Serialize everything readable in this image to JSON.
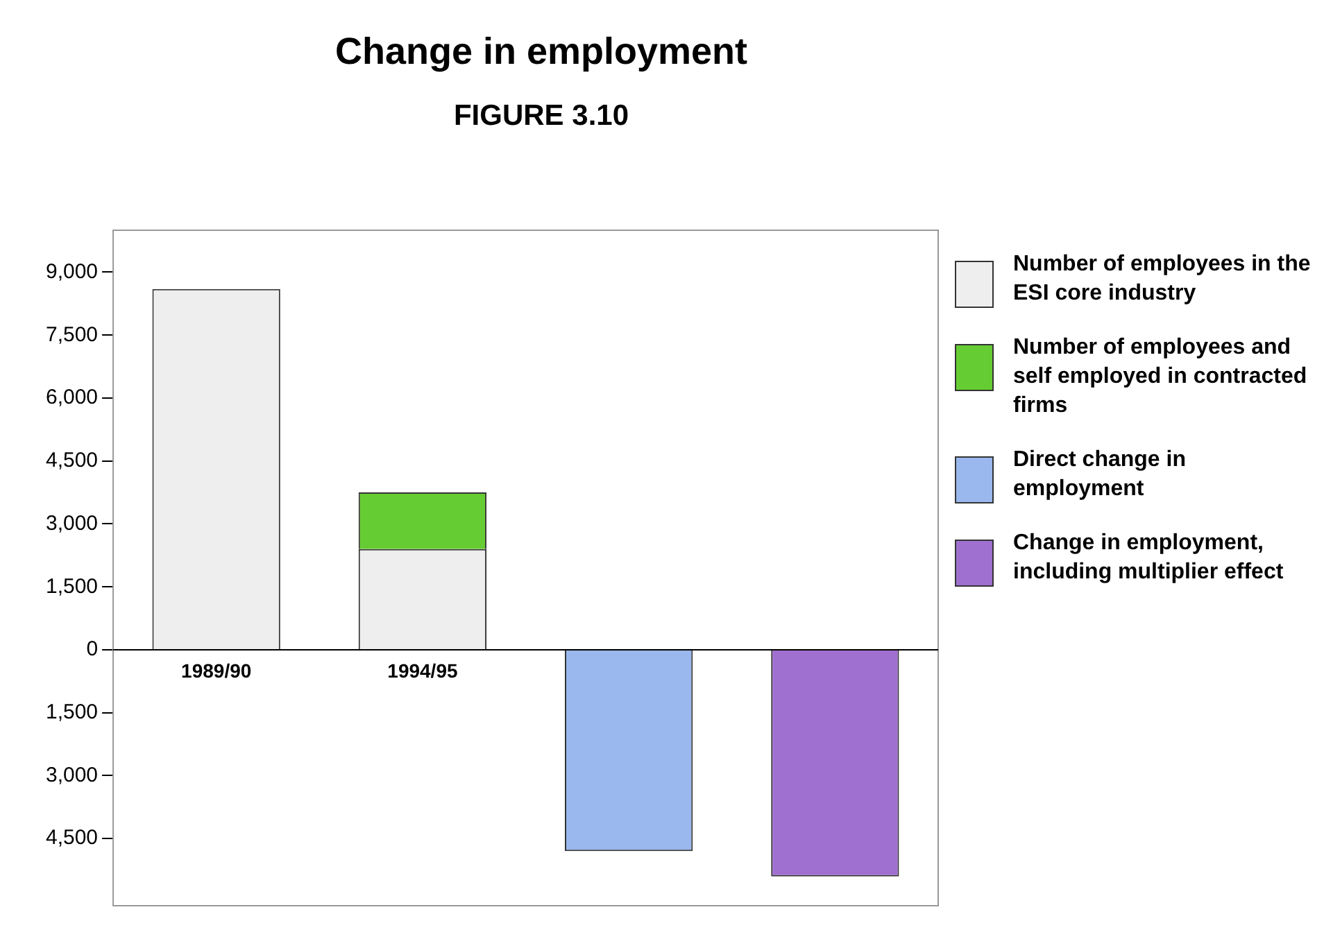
{
  "chart_data": {
    "type": "bar",
    "title": "Change in employment",
    "subtitle": "FIGURE 3.10",
    "stacked": true,
    "categories": [
      "1989/90",
      "1994/95",
      null,
      null
    ],
    "series": [
      {
        "name": "Number of employees in the ESI core industry",
        "color": "#eeeeee",
        "values": [
          8600,
          2400,
          null,
          null
        ]
      },
      {
        "name": "Number of employees and self employed in contracted firms",
        "color": "#66cc33",
        "values": [
          null,
          1350,
          null,
          null
        ]
      },
      {
        "name": "Direct change in employment",
        "color": "#9ab8ee",
        "values": [
          null,
          null,
          -4800,
          null
        ]
      },
      {
        "name": "Change in employment, including multiplier effect",
        "color": "#a070d0",
        "values": [
          null,
          null,
          null,
          -5400
        ]
      }
    ],
    "ylim": [
      -6100,
      10000
    ],
    "yticks": [
      {
        "value": -4500,
        "label": "4,500"
      },
      {
        "value": -3000,
        "label": "3,000"
      },
      {
        "value": -1500,
        "label": "1,500"
      },
      {
        "value": 0,
        "label": "0"
      },
      {
        "value": 1500,
        "label": "1,500"
      },
      {
        "value": 3000,
        "label": "3,000"
      },
      {
        "value": 4500,
        "label": "4,500"
      },
      {
        "value": 6000,
        "label": "6,000"
      },
      {
        "value": 7500,
        "label": "7,500"
      },
      {
        "value": 9000,
        "label": "9,000"
      }
    ],
    "grid": false,
    "legend": "right"
  }
}
